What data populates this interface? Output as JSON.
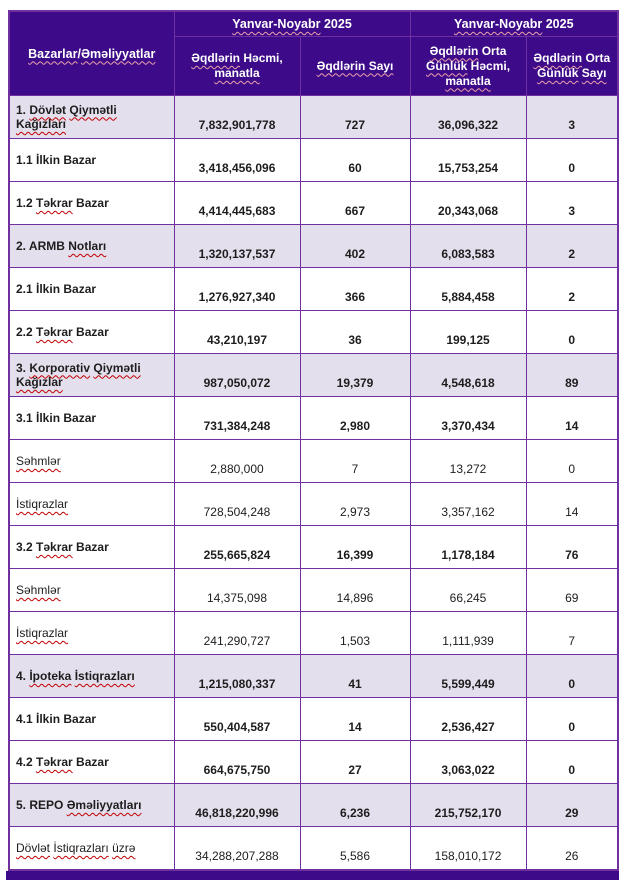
{
  "colors": {
    "header_bg": "#3D0B89",
    "border": "#7030A0",
    "band_row_bg": "#E4DFEC",
    "text": "#1d1d1d",
    "squiggle_body": "#C00000",
    "squiggle_header": "#EDA0AC",
    "page_background": "#ffffff"
  },
  "table": {
    "corner_header": "~Bazarlar~/~Əməliyyatlar~",
    "group_headers": [
      "~Yanvar-Noyabr~ 2025",
      "~Yanvar-Noyabr~ 2025"
    ],
    "column_headers": [
      "~Əqdlərin~ Həcmi, ~manatla~",
      "~Əqdlərin Sayı~",
      "~Əqdlərin~ Orta ~Günlük~ Həcmi, ~manatla~",
      "~Əqdlərin~ Orta ~Günlük~ ~Sayı~"
    ],
    "rows": [
      {
        "style": "cat",
        "label": "1. ~Dövlət~ ~Qiymətli~ ~Kağızları~",
        "values": [
          "7,832,901,778",
          "727",
          "36,096,322",
          "3"
        ]
      },
      {
        "style": "sub",
        "label": "1.1 İlkin Bazar",
        "values": [
          "3,418,456,096",
          "60",
          "15,753,254",
          "0"
        ]
      },
      {
        "style": "sub",
        "label": "1.2 ~Təkrar~ Bazar",
        "values": [
          "4,414,445,683",
          "667",
          "20,343,068",
          "3"
        ]
      },
      {
        "style": "cat",
        "label": "2. ARMB ~Notları~",
        "values": [
          "1,320,137,537",
          "402",
          "6,083,583",
          "2"
        ]
      },
      {
        "style": "sub",
        "label": "2.1 İlkin Bazar",
        "values": [
          "1,276,927,340",
          "366",
          "5,884,458",
          "2"
        ]
      },
      {
        "style": "sub",
        "label": "2.2 ~Təkrar~ Bazar",
        "values": [
          "43,210,197",
          "36",
          "199,125",
          "0"
        ]
      },
      {
        "style": "cat",
        "label": "3. ~Korporativ~ ~Qiymətli~ ~Kağızlar~",
        "values": [
          "987,050,072",
          "19,379",
          "4,548,618",
          "89"
        ]
      },
      {
        "style": "sub",
        "label": "3.1 İlkin Bazar",
        "values": [
          "731,384,248",
          "2,980",
          "3,370,434",
          "14"
        ]
      },
      {
        "style": "leaf",
        "label": "~Səhmlər~",
        "values": [
          "2,880,000",
          "7",
          "13,272",
          "0"
        ]
      },
      {
        "style": "leaf",
        "label": "~İstiqrazlar~",
        "values": [
          "728,504,248",
          "2,973",
          "3,357,162",
          "14"
        ]
      },
      {
        "style": "sub",
        "label": "3.2 ~Təkrar~ Bazar",
        "values": [
          "255,665,824",
          "16,399",
          "1,178,184",
          "76"
        ]
      },
      {
        "style": "leaf",
        "label": "~Səhmlər~",
        "values": [
          "14,375,098",
          "14,896",
          "66,245",
          "69"
        ]
      },
      {
        "style": "leaf",
        "label": "~İstiqrazlar~",
        "values": [
          "241,290,727",
          "1,503",
          "1,111,939",
          "7"
        ]
      },
      {
        "style": "cat",
        "label": "4. ~İpoteka~ ~İstiqrazları~",
        "values": [
          "1,215,080,337",
          "41",
          "5,599,449",
          "0"
        ]
      },
      {
        "style": "sub",
        "label": "4.1 İlkin Bazar",
        "values": [
          "550,404,587",
          "14",
          "2,536,427",
          "0"
        ]
      },
      {
        "style": "sub",
        "label": "4.2 ~Təkrar~ Bazar",
        "values": [
          "664,675,750",
          "27",
          "3,063,022",
          "0"
        ]
      },
      {
        "style": "cat",
        "label": "5. REPO ~Əməliyyatları~",
        "values": [
          "46,818,220,996",
          "6,236",
          "215,752,170",
          "29"
        ]
      },
      {
        "style": "leaf",
        "label": "~Dövlət~ ~İstiqrazları~ ~üzrə~",
        "values": [
          "34,288,207,288",
          "5,586",
          "158,010,172",
          "26"
        ]
      }
    ]
  }
}
